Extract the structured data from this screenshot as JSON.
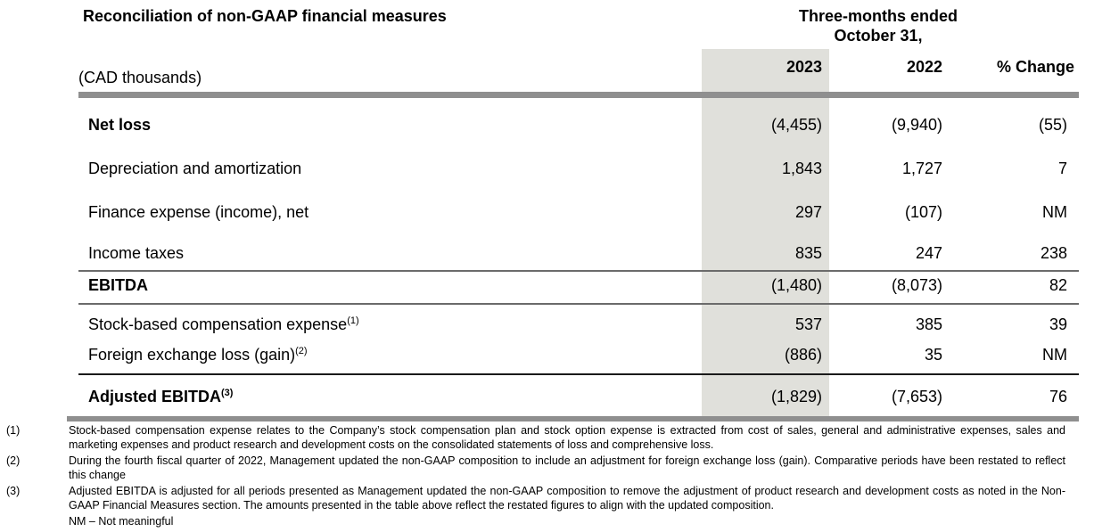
{
  "header": {
    "title": "Reconciliation of non-GAAP financial measures",
    "period_line1": "Three-months ended",
    "period_line2": "October 31,",
    "unit_label": "(CAD thousands)",
    "columns": [
      "2023",
      "2022",
      "% Change"
    ]
  },
  "table": {
    "rows": [
      {
        "label": "Net loss",
        "sup": "",
        "bold": true,
        "v2023": "(4,455)",
        "v2022": "(9,940)",
        "vchange": "(55)"
      },
      {
        "label": "Depreciation and amortization",
        "sup": "",
        "bold": false,
        "v2023": "1,843",
        "v2022": "1,727",
        "vchange": "7"
      },
      {
        "label": "Finance expense (income), net",
        "sup": "",
        "bold": false,
        "v2023": "297",
        "v2022": "(107)",
        "vchange": "NM"
      },
      {
        "label": "Income taxes",
        "sup": "",
        "bold": false,
        "v2023": "835",
        "v2022": "247",
        "vchange": "238"
      },
      {
        "label": "EBITDA",
        "sup": "",
        "bold": true,
        "v2023": "(1,480)",
        "v2022": "(8,073)",
        "vchange": "82"
      },
      {
        "label": "Stock-based compensation expense",
        "sup": "(1)",
        "bold": false,
        "v2023": "537",
        "v2022": "385",
        "vchange": "39"
      },
      {
        "label": "Foreign exchange loss (gain)",
        "sup": "(2)",
        "bold": false,
        "v2023": "(886)",
        "v2022": "35",
        "vchange": "NM"
      },
      {
        "label": "Adjusted EBITDA",
        "sup": "(3)",
        "bold": true,
        "v2023": "(1,829)",
        "v2022": "(7,653)",
        "vchange": "76"
      }
    ]
  },
  "footnotes": {
    "items": [
      {
        "marker": "(1)",
        "text": "Stock-based compensation expense relates to the Company’s stock compensation plan and stock option expense is extracted from cost of sales, general and administrative expenses, sales and marketing expenses and product research and development costs on the consolidated statements of loss and comprehensive loss."
      },
      {
        "marker": "(2)",
        "text": "During the fourth fiscal quarter of 2022, Management updated the non-GAAP composition to include an adjustment for foreign exchange loss (gain). Comparative periods have been restated to reflect this change"
      },
      {
        "marker": "(3)",
        "text": "Adjusted EBITDA is adjusted for all periods presented as Management updated the non-GAAP composition to remove the adjustment of product research and development costs as noted in the Non-GAAP Financial Measures section. The amounts presented in the table above reflect the restated figures to align with the updated composition."
      }
    ],
    "nm_note": "NM – Not meaningful"
  },
  "colors": {
    "highlight_column": "#e0e0db",
    "rule_gray": "#8f8f8f",
    "rule_thin_gray": "#6b6b6b",
    "rule_black": "#1a1a1a"
  }
}
